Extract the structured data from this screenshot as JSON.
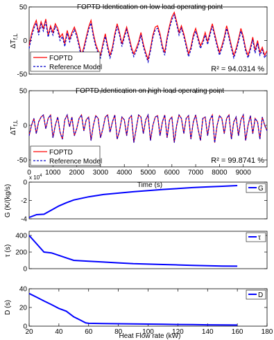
{
  "chart_data": [
    {
      "type": "line",
      "title": "FOPTD Identication on low load operating point",
      "ylabel": "ΔT",
      "ylabel_sub": "f,L",
      "xlim": [
        0,
        10000
      ],
      "ylim": [
        -50,
        50
      ],
      "yticks": [
        "-50",
        "0",
        "50"
      ],
      "legend": "bottom-left",
      "annotation": "R² = 94.0314 %",
      "series": [
        {
          "name": "FOPTD",
          "color": "#ff0000",
          "style": "solid"
        },
        {
          "name": "Reference Model",
          "color": "#0000cc",
          "style": "dashed"
        }
      ],
      "x": [
        0,
        100,
        200,
        300,
        400,
        500,
        600,
        700,
        800,
        900,
        1000,
        1100,
        1200,
        1300,
        1400,
        1500,
        1600,
        1700,
        1800,
        1900,
        2000,
        2100,
        2200,
        2300,
        2400,
        2500,
        2600,
        2700,
        2800,
        2900,
        3000,
        3100,
        3200,
        3300,
        3400,
        3500,
        3600,
        3700,
        3800,
        3900,
        4000,
        4100,
        4200,
        4300,
        4400,
        4500,
        4600,
        4700,
        4800,
        4900,
        5000,
        5100,
        5200,
        5300,
        5400,
        5500,
        5600,
        5700,
        5800,
        5900,
        6000,
        6100,
        6200,
        6300,
        6400,
        6500,
        6600,
        6700,
        6800,
        6900,
        7000,
        7100,
        7200,
        7300,
        7400,
        7500,
        7600,
        7700,
        7800,
        7900,
        8000,
        8100,
        8200,
        8300,
        8400,
        8500,
        8600,
        8700,
        8800,
        8900,
        9000,
        9100,
        9200,
        9300,
        9400,
        9500,
        9600,
        9700,
        9800,
        9900,
        10000
      ],
      "y_foptd": [
        -8,
        10,
        22,
        30,
        12,
        28,
        18,
        32,
        8,
        22,
        12,
        25,
        18,
        5,
        10,
        -5,
        15,
        2,
        12,
        20,
        10,
        -5,
        -22,
        -10,
        5,
        20,
        30,
        10,
        -5,
        -15,
        -22,
        -5,
        10,
        -8,
        -22,
        -10,
        10,
        25,
        12,
        -5,
        8,
        20,
        5,
        -10,
        -20,
        -12,
        -2,
        12,
        -5,
        -18,
        -28,
        -12,
        8,
        20,
        22,
        10,
        -8,
        -18,
        5,
        22,
        35,
        42,
        28,
        12,
        22,
        10,
        -5,
        -20,
        -10,
        8,
        18,
        5,
        -8,
        0,
        12,
        -2,
        12,
        25,
        10,
        -5,
        -18,
        -8,
        5,
        22,
        8,
        -8,
        -22,
        -12,
        2,
        18,
        6,
        -12,
        -22,
        -10,
        5,
        -15,
        0,
        -18,
        -10,
        -22,
        -15
      ],
      "y_ref": [
        -12,
        5,
        18,
        26,
        8,
        24,
        14,
        28,
        5,
        18,
        8,
        21,
        14,
        0,
        6,
        -9,
        11,
        -2,
        8,
        16,
        6,
        -9,
        -26,
        -14,
        1,
        16,
        26,
        6,
        -9,
        -19,
        -26,
        -9,
        6,
        -12,
        -26,
        -14,
        6,
        21,
        8,
        -9,
        4,
        16,
        1,
        -14,
        -24,
        -16,
        -6,
        8,
        -9,
        -22,
        -32,
        -16,
        4,
        16,
        18,
        6,
        -12,
        -22,
        1,
        18,
        31,
        38,
        24,
        8,
        18,
        6,
        -9,
        -24,
        -14,
        4,
        14,
        1,
        -12,
        -4,
        8,
        -6,
        8,
        21,
        6,
        -9,
        -22,
        -12,
        1,
        18,
        4,
        -12,
        -26,
        -16,
        -2,
        14,
        2,
        -16,
        -26,
        -14,
        1,
        -19,
        -4,
        -22,
        -14,
        -26,
        -19
      ]
    },
    {
      "type": "line",
      "title": "FOPTD Identication on high load operating point",
      "ylabel": "ΔT",
      "ylabel_sub": "f,L",
      "xlabel": "Time (s)",
      "xlim": [
        0,
        10000
      ],
      "ylim": [
        -60,
        50
      ],
      "yticks": [
        "-50",
        "0",
        "50"
      ],
      "xticks": [
        "0",
        "1000",
        "2000",
        "3000",
        "4000",
        "5000",
        "6000",
        "7000",
        "8000",
        "9000"
      ],
      "legend": "bottom-left",
      "annotation": "R² = 99.8741 %",
      "series": [
        {
          "name": "FOPTD",
          "color": "#ff0000",
          "style": "solid"
        },
        {
          "name": "Reference Model",
          "color": "#0000cc",
          "style": "dashed"
        }
      ],
      "x": [
        0,
        100,
        200,
        300,
        400,
        500,
        600,
        700,
        800,
        900,
        1000,
        1100,
        1200,
        1300,
        1400,
        1500,
        1600,
        1700,
        1800,
        1900,
        2000,
        2100,
        2200,
        2300,
        2400,
        2500,
        2600,
        2700,
        2800,
        2900,
        3000,
        3100,
        3200,
        3300,
        3400,
        3500,
        3600,
        3700,
        3800,
        3900,
        4000,
        4100,
        4200,
        4300,
        4400,
        4500,
        4600,
        4700,
        4800,
        4900,
        5000,
        5100,
        5200,
        5300,
        5400,
        5500,
        5600,
        5700,
        5800,
        5900,
        6000,
        6100,
        6200,
        6300,
        6400,
        6500,
        6600,
        6700,
        6800,
        6900,
        7000,
        7100,
        7200,
        7300,
        7400,
        7500,
        7600,
        7700,
        7800,
        7900,
        8000,
        8100,
        8200,
        8300,
        8400,
        8500,
        8600,
        8700,
        8800,
        8900,
        9000,
        9100,
        9200,
        9300,
        9400,
        9500,
        9600,
        9700,
        9800,
        9900,
        10000
      ],
      "y": [
        -15,
        0,
        10,
        -12,
        5,
        12,
        15,
        -5,
        10,
        15,
        -18,
        0,
        12,
        -10,
        -20,
        8,
        15,
        -2,
        12,
        -15,
        -5,
        10,
        15,
        -8,
        8,
        12,
        -22,
        0,
        14,
        10,
        -18,
        -5,
        12,
        15,
        -10,
        5,
        15,
        -20,
        -8,
        12,
        8,
        -15,
        10,
        14,
        -25,
        -5,
        15,
        12,
        -12,
        8,
        15,
        -22,
        0,
        12,
        14,
        -15,
        5,
        15,
        -18,
        8,
        12,
        -25,
        0,
        15,
        10,
        -12,
        10,
        14,
        -20,
        5,
        15,
        -5,
        -22,
        10,
        12,
        -15,
        8,
        15,
        -25,
        0,
        14,
        10,
        -12,
        10,
        15,
        -20,
        5,
        12,
        -15,
        8,
        15,
        -22,
        0,
        14,
        -12,
        10,
        5,
        -20,
        12,
        0,
        -8
      ]
    },
    {
      "type": "line",
      "ylabel": "G (K/(kg/s)",
      "multiplier": "x 10",
      "multiplier_exp": "4",
      "xlim": [
        20,
        180
      ],
      "ylim": [
        -4,
        0
      ],
      "yticks": [
        "-4",
        "-2",
        "0"
      ],
      "legend": "top-right",
      "series": [
        {
          "name": "G",
          "color": "#0000ff"
        }
      ],
      "x": [
        20,
        25,
        30,
        35,
        40,
        45,
        50,
        60,
        70,
        80,
        90,
        100,
        110,
        120,
        130,
        140,
        150,
        160
      ],
      "y": [
        -3.85,
        -3.55,
        -3.5,
        -3.05,
        -2.6,
        -2.25,
        -1.95,
        -1.6,
        -1.35,
        -1.2,
        -1.05,
        -0.92,
        -0.8,
        -0.7,
        -0.6,
        -0.52,
        -0.45,
        -0.38
      ]
    },
    {
      "type": "line",
      "ylabel": "τ (s)",
      "xlim": [
        20,
        180
      ],
      "ylim": [
        0,
        450
      ],
      "yticks": [
        "0",
        "200",
        "400"
      ],
      "legend": "top-right",
      "series": [
        {
          "name": "τ",
          "color": "#0000ff"
        }
      ],
      "x": [
        20,
        25,
        30,
        35,
        40,
        45,
        50,
        60,
        70,
        80,
        90,
        100,
        110,
        120,
        130,
        140,
        150,
        160
      ],
      "y": [
        400,
        300,
        200,
        190,
        160,
        130,
        100,
        90,
        80,
        70,
        60,
        55,
        50,
        45,
        40,
        35,
        32,
        30
      ]
    },
    {
      "type": "line",
      "ylabel": "D (s)",
      "xlabel": "Heat Flow rate (kW)",
      "xlim": [
        20,
        180
      ],
      "ylim": [
        0,
        40
      ],
      "yticks": [
        "0",
        "20",
        "40"
      ],
      "xticks": [
        "20",
        "40",
        "60",
        "80",
        "100",
        "120",
        "140",
        "160",
        "180"
      ],
      "legend": "top-right",
      "series": [
        {
          "name": "D",
          "color": "#0000ff"
        }
      ],
      "x": [
        20,
        25,
        30,
        35,
        40,
        45,
        50,
        55,
        58,
        60,
        70,
        80,
        90,
        100,
        110,
        120,
        130,
        140,
        150,
        160
      ],
      "y": [
        35,
        31,
        27,
        23,
        19,
        16,
        10,
        6,
        3.5,
        3,
        2.8,
        2.6,
        2.4,
        2.2,
        2,
        1.8,
        1.6,
        1.4,
        1.3,
        1.2
      ]
    }
  ]
}
